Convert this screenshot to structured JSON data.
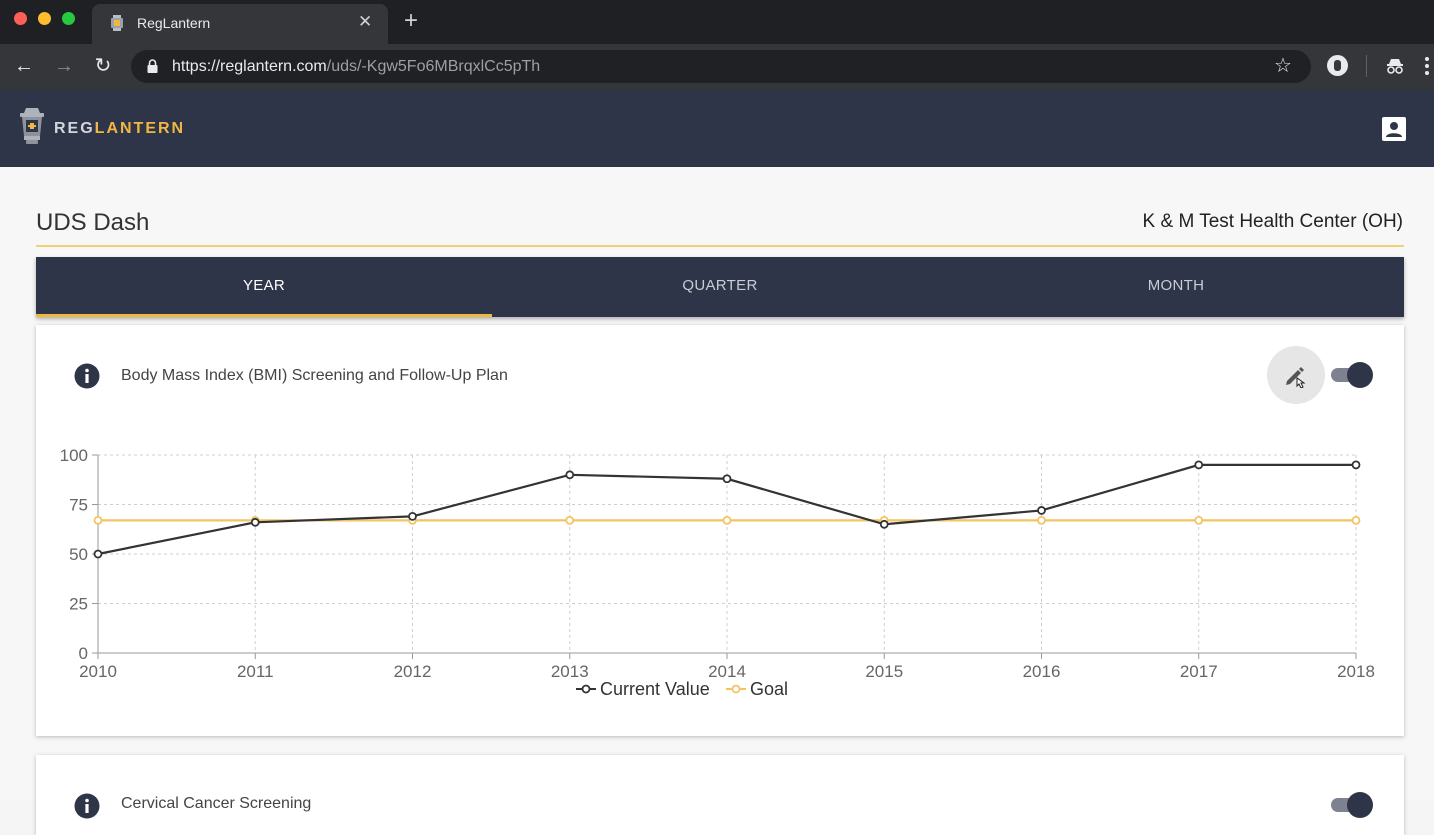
{
  "browser": {
    "tab_title": "RegLantern",
    "url_host": "https://reglantern.com",
    "url_path": "/uds/-Kgw5Fo6MBrqxlCc5pTh"
  },
  "app": {
    "logo_reg": "REG",
    "logo_lantern": "LANTERN"
  },
  "page": {
    "title": "UDS Dash",
    "center_name": "K & M Test Health Center (OH)",
    "tabs": [
      {
        "label": "YEAR",
        "active": true
      },
      {
        "label": "QUARTER",
        "active": false
      },
      {
        "label": "MONTH",
        "active": false
      }
    ]
  },
  "cards": [
    {
      "title": "Body Mass Index (BMI) Screening and Follow-Up Plan",
      "toggle_on": true
    },
    {
      "title": "Cervical Cancer Screening",
      "toggle_on": true
    }
  ],
  "colors": {
    "navy": "#2f3548",
    "accent": "#f2b741",
    "current_line": "#333333",
    "goal_line": "#f2c463"
  },
  "icons": [
    "info-icon",
    "pencil-icon",
    "account-icon",
    "lock-icon",
    "star-icon"
  ],
  "chart_data": {
    "type": "line",
    "categories": [
      "2010",
      "2011",
      "2012",
      "2013",
      "2014",
      "2015",
      "2016",
      "2017",
      "2018"
    ],
    "series": [
      {
        "name": "Current Value",
        "values": [
          50,
          66,
          69,
          90,
          88,
          65,
          72,
          95,
          95
        ]
      },
      {
        "name": "Goal",
        "values": [
          67,
          67,
          67,
          67,
          67,
          67,
          67,
          67,
          67
        ]
      }
    ],
    "yticks": [
      "0",
      "25",
      "50",
      "75",
      "100"
    ],
    "ylim": [
      0,
      100
    ],
    "grid": true,
    "legend": "bottom-center"
  }
}
